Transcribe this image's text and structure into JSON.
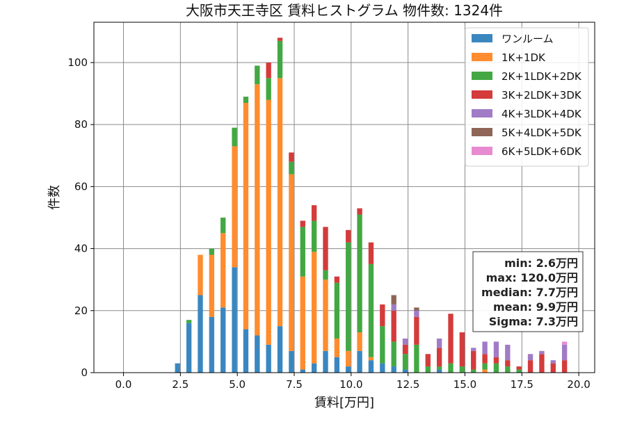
{
  "chart_data": {
    "type": "bar",
    "stacked": true,
    "title": "大阪市天王寺区 賃料ヒストグラム 物件数: 1324件",
    "xlabel": "賃料[万円]",
    "ylabel": "件数",
    "xlim": [
      -1.3,
      20.7
    ],
    "ylim": [
      0,
      113
    ],
    "xticks": [
      0.0,
      2.5,
      5.0,
      7.5,
      10.0,
      12.5,
      15.0,
      17.5,
      20.0
    ],
    "xtick_labels": [
      "0.0",
      "2.5",
      "5.0",
      "7.5",
      "10.0",
      "12.5",
      "15.0",
      "17.5",
      "20.0"
    ],
    "yticks": [
      0,
      20,
      40,
      60,
      80,
      100
    ],
    "ytick_labels": [
      "0",
      "20",
      "40",
      "60",
      "80",
      "100"
    ],
    "grid": true,
    "legend_position": "top-right",
    "bin_width": 0.25,
    "x": [
      2.375,
      2.875,
      3.375,
      3.875,
      4.375,
      4.875,
      5.375,
      5.875,
      6.375,
      6.875,
      7.375,
      7.875,
      8.375,
      8.875,
      9.375,
      9.875,
      10.375,
      10.875,
      11.375,
      11.875,
      12.375,
      12.875,
      13.375,
      13.875,
      14.375,
      14.875,
      15.375,
      15.875,
      16.375,
      16.875,
      17.375,
      17.875,
      18.375,
      18.875,
      19.375,
      19.875
    ],
    "series": [
      {
        "name": "ワンルーム",
        "color": "#3a87c0",
        "values": [
          3,
          16,
          25,
          18,
          21,
          34,
          14,
          12,
          9,
          15,
          7,
          1,
          3,
          7,
          5,
          2,
          7,
          4,
          3,
          2,
          1,
          0,
          0,
          1,
          0,
          0,
          0,
          0,
          0,
          0,
          0,
          0,
          0,
          0,
          0,
          0
        ]
      },
      {
        "name": "1K+1DK",
        "color": "#ff8c2e",
        "values": [
          0,
          0,
          13,
          20,
          24,
          39,
          73,
          81,
          79,
          80,
          57,
          30,
          36,
          23,
          6,
          5,
          6,
          1,
          0,
          0,
          0,
          0,
          0,
          0,
          0,
          0,
          0,
          1,
          0,
          0,
          0,
          0,
          0,
          0,
          0,
          0
        ]
      },
      {
        "name": "2K+1LDK+2DK",
        "color": "#43a843",
        "values": [
          0,
          1,
          0,
          2,
          5,
          6,
          2,
          6,
          7,
          12,
          4,
          16,
          10,
          3,
          18,
          35,
          38,
          30,
          12,
          8,
          5,
          9,
          2,
          1,
          3,
          2,
          1,
          2,
          3,
          2,
          1,
          0,
          0,
          0,
          0,
          0
        ]
      },
      {
        "name": "3K+2LDK+3DK",
        "color": "#d43b3b",
        "values": [
          0,
          0,
          0,
          0,
          0,
          0,
          0,
          0,
          5,
          1,
          3,
          2,
          5,
          14,
          2,
          4,
          2,
          7,
          7,
          10,
          3,
          9,
          4,
          6,
          16,
          11,
          6,
          3,
          2,
          2,
          1,
          4,
          6,
          3,
          4,
          0
        ]
      },
      {
        "name": "4K+3LDK+4DK",
        "color": "#a07cc6",
        "values": [
          0,
          0,
          0,
          0,
          0,
          0,
          0,
          0,
          0,
          0,
          0,
          0,
          0,
          0,
          0,
          0,
          0,
          0,
          0,
          2,
          2,
          2,
          0,
          3,
          0,
          0,
          1,
          4,
          5,
          5,
          0,
          2,
          1,
          1,
          5,
          0
        ]
      },
      {
        "name": "5K+4LDK+5DK",
        "color": "#8f6557",
        "values": [
          0,
          0,
          0,
          0,
          0,
          0,
          0,
          0,
          0,
          0,
          0,
          0,
          0,
          0,
          0,
          0,
          0,
          0,
          0,
          3,
          0,
          1,
          0,
          0,
          0,
          0,
          0,
          0,
          0,
          0,
          0,
          0,
          0,
          0,
          0,
          0
        ]
      },
      {
        "name": "6K+5LDK+6DK",
        "color": "#e88ad0",
        "values": [
          0,
          0,
          0,
          0,
          0,
          0,
          0,
          0,
          0,
          0,
          0,
          0,
          0,
          0,
          0,
          0,
          0,
          0,
          0,
          0,
          0,
          0,
          0,
          0,
          0,
          0,
          0,
          0,
          0,
          0,
          0,
          0,
          0,
          0,
          1,
          0
        ]
      }
    ],
    "stats_box": {
      "position": "right",
      "lines": [
        "min: 2.6万円",
        "max: 120.0万円",
        "median: 7.7万円",
        "mean: 9.9万円",
        "Sigma: 7.3万円"
      ]
    }
  }
}
